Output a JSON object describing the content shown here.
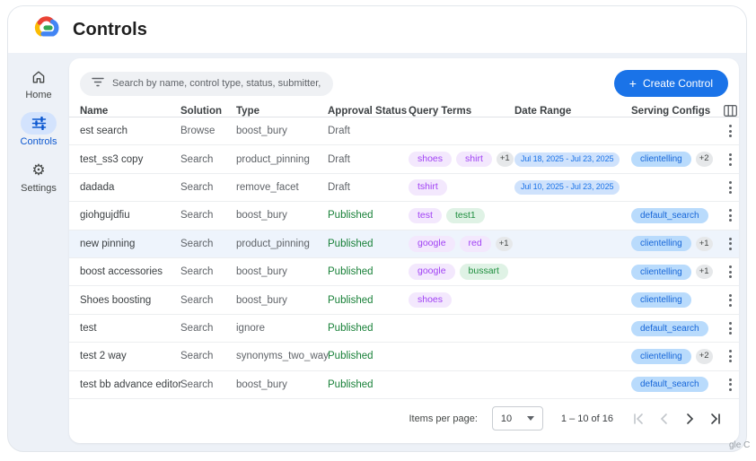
{
  "app": {
    "title": "Controls",
    "background_text_fragment": "gle C"
  },
  "sidebar": {
    "items": [
      {
        "label": "Home",
        "icon": "home-icon",
        "active": false
      },
      {
        "label": "Controls",
        "icon": "tune-icon",
        "active": true
      },
      {
        "label": "Settings",
        "icon": "gear-icon",
        "active": false
      }
    ]
  },
  "toolbar": {
    "search_placeholder": "Search by name, control type, status, submitter, requested on",
    "create_plus": "+",
    "create_label": "Create Control"
  },
  "table": {
    "columns": [
      "Name",
      "Solution",
      "Type",
      "Approval Status",
      "Query Terms",
      "Date Range",
      "Serving Configs"
    ],
    "rows": [
      {
        "name": "est search",
        "solution": "Browse",
        "type": "boost_bury",
        "status": "Draft",
        "query_terms": [],
        "query_extra": "",
        "date_range": "",
        "serving_configs": [],
        "serving_extra": "",
        "highlighted": false
      },
      {
        "name": "test_ss3 copy",
        "solution": "Search",
        "type": "product_pinning",
        "status": "Draft",
        "query_terms": [
          {
            "label": "shoes",
            "color": "purple"
          },
          {
            "label": "shirt",
            "color": "purple"
          }
        ],
        "query_extra": "+1",
        "date_range": "Jul 18, 2025 - Jul 23, 2025",
        "serving_configs": [
          "clientelling"
        ],
        "serving_extra": "+2",
        "highlighted": false
      },
      {
        "name": "dadada",
        "solution": "Search",
        "type": "remove_facet",
        "status": "Draft",
        "query_terms": [
          {
            "label": "tshirt",
            "color": "purple"
          }
        ],
        "query_extra": "",
        "date_range": "Jul 10, 2025 - Jul 23, 2025",
        "serving_configs": [],
        "serving_extra": "",
        "highlighted": false
      },
      {
        "name": "giohgujdfiu",
        "solution": "Search",
        "type": "boost_bury",
        "status": "Published",
        "query_terms": [
          {
            "label": "test",
            "color": "purple"
          },
          {
            "label": "test1",
            "color": "green"
          }
        ],
        "query_extra": "",
        "date_range": "",
        "serving_configs": [
          "default_search"
        ],
        "serving_extra": "",
        "highlighted": false
      },
      {
        "name": "new pinning",
        "solution": "Search",
        "type": "product_pinning",
        "status": "Published",
        "query_terms": [
          {
            "label": "google",
            "color": "purple"
          },
          {
            "label": "red",
            "color": "purple"
          }
        ],
        "query_extra": "+1",
        "date_range": "",
        "serving_configs": [
          "clientelling"
        ],
        "serving_extra": "+1",
        "highlighted": true
      },
      {
        "name": "boost accessories",
        "solution": "Search",
        "type": "boost_bury",
        "status": "Published",
        "query_terms": [
          {
            "label": "google",
            "color": "purple"
          },
          {
            "label": "bussart",
            "color": "green"
          }
        ],
        "query_extra": "",
        "date_range": "",
        "serving_configs": [
          "clientelling"
        ],
        "serving_extra": "+1",
        "highlighted": false
      },
      {
        "name": "Shoes boosting",
        "solution": "Search",
        "type": "boost_bury",
        "status": "Published",
        "query_terms": [
          {
            "label": "shoes",
            "color": "purple"
          }
        ],
        "query_extra": "",
        "date_range": "",
        "serving_configs": [
          "clientelling"
        ],
        "serving_extra": "",
        "highlighted": false
      },
      {
        "name": "test",
        "solution": "Search",
        "type": "ignore",
        "status": "Published",
        "query_terms": [],
        "query_extra": "",
        "date_range": "",
        "serving_configs": [
          "default_search"
        ],
        "serving_extra": "",
        "highlighted": false
      },
      {
        "name": "test 2 way",
        "solution": "Search",
        "type": "synonyms_two_way",
        "status": "Published",
        "query_terms": [],
        "query_extra": "",
        "date_range": "",
        "serving_configs": [
          "clientelling"
        ],
        "serving_extra": "+2",
        "highlighted": false
      },
      {
        "name": "test bb advance editor",
        "solution": "Search",
        "type": "boost_bury",
        "status": "Published",
        "query_terms": [],
        "query_extra": "",
        "date_range": "",
        "serving_configs": [
          "default_search"
        ],
        "serving_extra": "",
        "highlighted": false
      }
    ]
  },
  "pagination": {
    "items_per_page_label": "Items per page:",
    "page_size": "10",
    "range": "1 – 10 of 16"
  },
  "colors": {
    "accent_blue": "#1a73e8",
    "active_nav_blue": "#0b57d0",
    "published_green": "#188038",
    "draft_gray": "#5f6368",
    "chip_purple_text": "#a142f4",
    "chip_green_text": "#1e8e3e",
    "chip_blue_text": "#1666d8",
    "body_background": "#edf1f7",
    "row_highlight": "#eef4fc"
  }
}
